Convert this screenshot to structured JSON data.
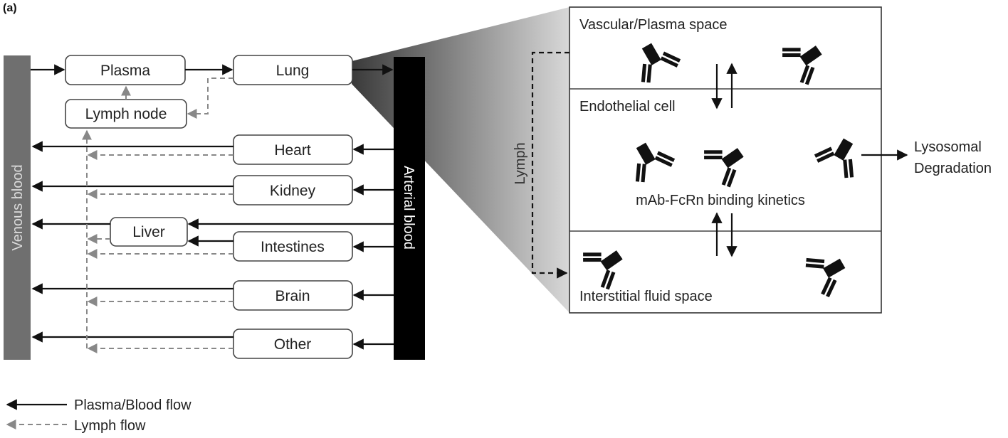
{
  "panel_label": "(a)",
  "compartments": {
    "venous": "Venous blood",
    "arterial": "Arterial blood"
  },
  "organs": {
    "plasma": "Plasma",
    "lymph_node": "Lymph node",
    "lung": "Lung",
    "heart": "Heart",
    "kidney": "Kidney",
    "liver": "Liver",
    "intestines": "Intestines",
    "brain": "Brain",
    "other": "Other"
  },
  "zoom": {
    "vascular": "Vascular/Plasma space",
    "endothelial": "Endothelial cell",
    "binding": "mAb-FcRn binding kinetics",
    "interstitial": "Interstitial fluid space",
    "lymph": "Lymph",
    "lysosomal_line1": "Lysosomal",
    "lysosomal_line2": "Degradation"
  },
  "legend": {
    "solid": "Plasma/Blood flow",
    "dashed": "Lymph flow"
  },
  "colors": {
    "venous_bar": "#6f6f6f",
    "arterial_bar": "#000000",
    "lymph_dash": "#888888",
    "antibody": "#111111"
  }
}
